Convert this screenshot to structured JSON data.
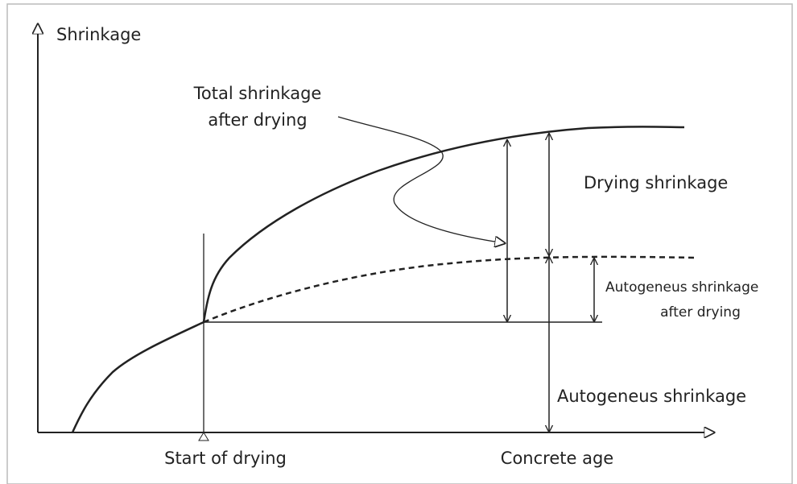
{
  "axes": {
    "y_label": "Shrinkage",
    "x_label": "Concrete age",
    "marker_label": "Start of drying"
  },
  "labels": {
    "total_shrinkage": [
      "Total shrinkage",
      "after drying"
    ],
    "drying_shrinkage": "Drying shrinkage",
    "autogenous_after_drying": [
      "Autogeneus shrinkage",
      "after drying"
    ],
    "autogenous_shrinkage": "Autogeneus shrinkage"
  }
}
